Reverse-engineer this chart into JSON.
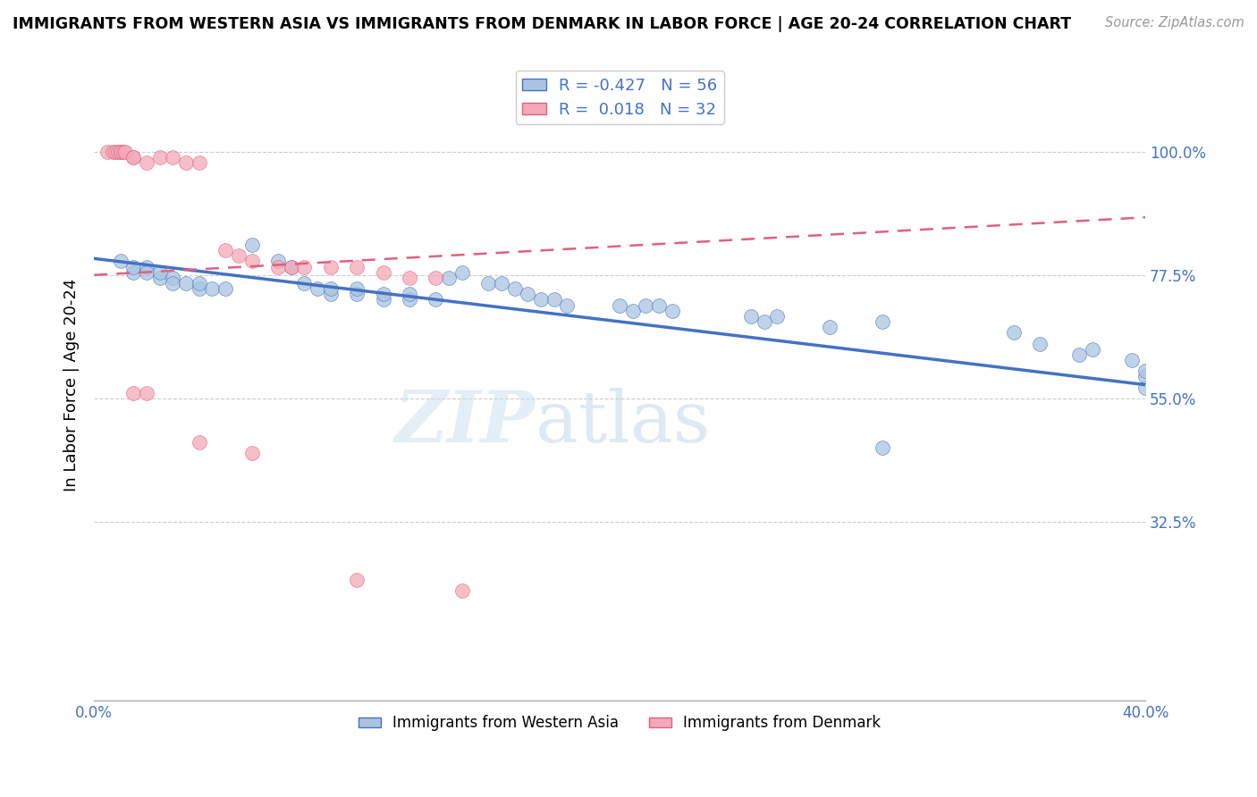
{
  "title": "IMMIGRANTS FROM WESTERN ASIA VS IMMIGRANTS FROM DENMARK IN LABOR FORCE | AGE 20-24 CORRELATION CHART",
  "source": "Source: ZipAtlas.com",
  "ylabel": "In Labor Force | Age 20-24",
  "xmin": 0.0,
  "xmax": 0.4,
  "ymin": 0.0,
  "ymax": 1.15,
  "yticks": [
    0.325,
    0.55,
    0.775,
    1.0
  ],
  "ytick_labels": [
    "32.5%",
    "55.0%",
    "77.5%",
    "100.0%"
  ],
  "xticks": [
    0.0,
    0.08,
    0.16,
    0.24,
    0.32,
    0.4
  ],
  "xtick_labels": [
    "0.0%",
    "",
    "",
    "",
    "",
    "40.0%"
  ],
  "legend_bottom": [
    "Immigrants from Western Asia",
    "Immigrants from Denmark"
  ],
  "blue_R": -0.427,
  "blue_N": 56,
  "pink_R": 0.018,
  "pink_N": 32,
  "blue_scatter": [
    [
      0.01,
      0.8
    ],
    [
      0.015,
      0.78
    ],
    [
      0.015,
      0.79
    ],
    [
      0.02,
      0.79
    ],
    [
      0.02,
      0.78
    ],
    [
      0.025,
      0.77
    ],
    [
      0.025,
      0.78
    ],
    [
      0.03,
      0.77
    ],
    [
      0.03,
      0.76
    ],
    [
      0.035,
      0.76
    ],
    [
      0.04,
      0.75
    ],
    [
      0.04,
      0.76
    ],
    [
      0.045,
      0.75
    ],
    [
      0.05,
      0.75
    ],
    [
      0.06,
      0.83
    ],
    [
      0.07,
      0.8
    ],
    [
      0.075,
      0.79
    ],
    [
      0.08,
      0.76
    ],
    [
      0.085,
      0.75
    ],
    [
      0.09,
      0.74
    ],
    [
      0.09,
      0.75
    ],
    [
      0.1,
      0.74
    ],
    [
      0.1,
      0.75
    ],
    [
      0.11,
      0.73
    ],
    [
      0.11,
      0.74
    ],
    [
      0.12,
      0.73
    ],
    [
      0.12,
      0.74
    ],
    [
      0.13,
      0.73
    ],
    [
      0.135,
      0.77
    ],
    [
      0.14,
      0.78
    ],
    [
      0.15,
      0.76
    ],
    [
      0.155,
      0.76
    ],
    [
      0.16,
      0.75
    ],
    [
      0.165,
      0.74
    ],
    [
      0.17,
      0.73
    ],
    [
      0.175,
      0.73
    ],
    [
      0.18,
      0.72
    ],
    [
      0.2,
      0.72
    ],
    [
      0.205,
      0.71
    ],
    [
      0.21,
      0.72
    ],
    [
      0.215,
      0.72
    ],
    [
      0.22,
      0.71
    ],
    [
      0.25,
      0.7
    ],
    [
      0.255,
      0.69
    ],
    [
      0.26,
      0.7
    ],
    [
      0.28,
      0.68
    ],
    [
      0.3,
      0.69
    ],
    [
      0.3,
      0.46
    ],
    [
      0.35,
      0.67
    ],
    [
      0.36,
      0.65
    ],
    [
      0.375,
      0.63
    ],
    [
      0.38,
      0.64
    ],
    [
      0.395,
      0.62
    ],
    [
      0.4,
      0.57
    ],
    [
      0.4,
      0.59
    ],
    [
      0.4,
      0.6
    ]
  ],
  "pink_scatter": [
    [
      0.005,
      1.0
    ],
    [
      0.007,
      1.0
    ],
    [
      0.008,
      1.0
    ],
    [
      0.009,
      1.0
    ],
    [
      0.01,
      1.0
    ],
    [
      0.01,
      1.0
    ],
    [
      0.011,
      1.0
    ],
    [
      0.012,
      1.0
    ],
    [
      0.015,
      0.99
    ],
    [
      0.015,
      0.99
    ],
    [
      0.02,
      0.98
    ],
    [
      0.025,
      0.99
    ],
    [
      0.03,
      0.99
    ],
    [
      0.035,
      0.98
    ],
    [
      0.04,
      0.98
    ],
    [
      0.05,
      0.82
    ],
    [
      0.055,
      0.81
    ],
    [
      0.06,
      0.8
    ],
    [
      0.07,
      0.79
    ],
    [
      0.075,
      0.79
    ],
    [
      0.08,
      0.79
    ],
    [
      0.09,
      0.79
    ],
    [
      0.1,
      0.79
    ],
    [
      0.11,
      0.78
    ],
    [
      0.12,
      0.77
    ],
    [
      0.13,
      0.77
    ],
    [
      0.015,
      0.56
    ],
    [
      0.02,
      0.56
    ],
    [
      0.04,
      0.47
    ],
    [
      0.06,
      0.45
    ],
    [
      0.1,
      0.22
    ],
    [
      0.14,
      0.2
    ]
  ],
  "blue_line_endpoints": [
    [
      0.0,
      0.805
    ],
    [
      0.4,
      0.575
    ]
  ],
  "pink_line_endpoints": [
    [
      0.0,
      0.775
    ],
    [
      0.4,
      0.88
    ]
  ],
  "bg_color": "#ffffff",
  "blue_color": "#aac4e0",
  "blue_line_color": "#4472c4",
  "pink_color": "#f4a8b8",
  "pink_line_color": "#e06080",
  "grid_color": "#cccccc",
  "text_color": "#4472c4",
  "watermark_part1": "ZIP",
  "watermark_part2": "atlas"
}
